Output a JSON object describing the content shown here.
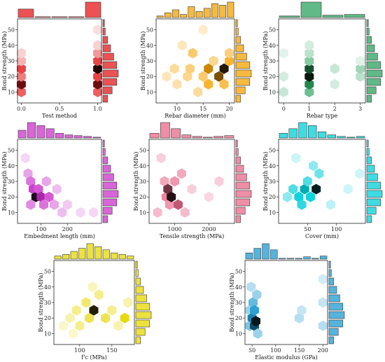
{
  "chart_data": [
    {
      "type": "hexbin",
      "color": "#e31a1c",
      "xlabel": "Test method",
      "ylabel": "Bond strength (MPa)",
      "xlim": [
        -0.05,
        1.05
      ],
      "ylim": [
        3,
        57
      ],
      "xticks": [
        0.0,
        0.5,
        1.0
      ],
      "xtick_labels": [
        "0.0",
        "0.5",
        "1.0"
      ],
      "yticks": [
        10,
        20,
        30,
        40,
        50
      ],
      "ytick_labels": [
        "10",
        "20",
        "30",
        "40",
        "50"
      ],
      "bins": [
        {
          "x": 0,
          "y": 10,
          "v": 0.5
        },
        {
          "x": 0,
          "y": 15,
          "v": 0.9
        },
        {
          "x": 0,
          "y": 20,
          "v": 0.4
        },
        {
          "x": 0,
          "y": 25,
          "v": 0.6
        },
        {
          "x": 0,
          "y": 30,
          "v": 0.2
        },
        {
          "x": 0,
          "y": 35,
          "v": 0.1
        },
        {
          "x": 1,
          "y": 10,
          "v": 0.5
        },
        {
          "x": 1,
          "y": 15,
          "v": 0.9
        },
        {
          "x": 1,
          "y": 20,
          "v": 0.6
        },
        {
          "x": 1,
          "y": 25,
          "v": 1.0
        },
        {
          "x": 1,
          "y": 30,
          "v": 0.6
        },
        {
          "x": 1,
          "y": 35,
          "v": 0.3
        },
        {
          "x": 1,
          "y": 40,
          "v": 0.1
        },
        {
          "x": 1,
          "y": 50,
          "v": 0.05
        }
      ],
      "top_hist": [
        0.55,
        0.05,
        0.05,
        0.05,
        1.0
      ],
      "right_hist": [
        0.3,
        0.6,
        0.9,
        1.0,
        0.9,
        0.7,
        0.5,
        0.3,
        0.15,
        0.1
      ]
    },
    {
      "type": "hexbin",
      "color": "#f5a300",
      "xlabel": "Rebar diameter (mm)",
      "ylabel": "Bond strength (MPa)",
      "xlim": [
        6,
        21
      ],
      "ylim": [
        3,
        57
      ],
      "xticks": [
        10,
        15,
        20
      ],
      "xtick_labels": [
        "10",
        "15",
        "20"
      ],
      "yticks": [
        10,
        20,
        30,
        40,
        50
      ],
      "ytick_labels": [
        "10",
        "20",
        "30",
        "40",
        "50"
      ],
      "bins": [
        {
          "x": 8,
          "y": 20,
          "v": 0.15
        },
        {
          "x": 9.5,
          "y": 25,
          "v": 0.25
        },
        {
          "x": 10,
          "y": 15,
          "v": 0.2
        },
        {
          "x": 12,
          "y": 20,
          "v": 0.3
        },
        {
          "x": 12.5,
          "y": 25,
          "v": 0.35
        },
        {
          "x": 13,
          "y": 35,
          "v": 0.4
        },
        {
          "x": 14,
          "y": 10,
          "v": 0.25
        },
        {
          "x": 15,
          "y": 20,
          "v": 0.4
        },
        {
          "x": 16,
          "y": 25,
          "v": 0.8
        },
        {
          "x": 16,
          "y": 15,
          "v": 0.6
        },
        {
          "x": 17,
          "y": 30,
          "v": 0.3
        },
        {
          "x": 18,
          "y": 20,
          "v": 0.9
        },
        {
          "x": 19,
          "y": 25,
          "v": 1.0
        },
        {
          "x": 20,
          "y": 30,
          "v": 0.6
        },
        {
          "x": 20,
          "y": 35,
          "v": 0.35
        },
        {
          "x": 19,
          "y": 15,
          "v": 0.5
        },
        {
          "x": 15,
          "y": 50,
          "v": 0.1
        },
        {
          "x": 11,
          "y": 40,
          "v": 0.15
        }
      ],
      "top_hist": [
        0.1,
        0.3,
        0.5,
        0.2,
        0.7,
        0.4,
        0.6,
        0.9,
        0.8,
        1.0
      ],
      "right_hist": [
        0.3,
        0.6,
        0.9,
        1.0,
        0.9,
        0.7,
        0.5,
        0.3,
        0.15,
        0.1
      ]
    },
    {
      "type": "hexbin",
      "color": "#2ca25f",
      "xlabel": "Rebar type",
      "ylabel": "Bond strength (MPa)",
      "xlim": [
        -0.2,
        3.2
      ],
      "ylim": [
        3,
        57
      ],
      "xticks": [
        0,
        1,
        2,
        3
      ],
      "xtick_labels": [
        "0",
        "1",
        "2",
        "3"
      ],
      "yticks": [
        10,
        20,
        30,
        40,
        50
      ],
      "ytick_labels": [
        "10",
        "20",
        "30",
        "40",
        "50"
      ],
      "bins": [
        {
          "x": 0,
          "y": 10,
          "v": 0.15
        },
        {
          "x": 0,
          "y": 20,
          "v": 0.1
        },
        {
          "x": 0,
          "y": 35,
          "v": 0.05
        },
        {
          "x": 1,
          "y": 10,
          "v": 0.5
        },
        {
          "x": 1,
          "y": 15,
          "v": 0.8
        },
        {
          "x": 1,
          "y": 20,
          "v": 1.0
        },
        {
          "x": 1,
          "y": 25,
          "v": 0.9
        },
        {
          "x": 1,
          "y": 30,
          "v": 0.4
        },
        {
          "x": 1,
          "y": 35,
          "v": 0.2
        },
        {
          "x": 1,
          "y": 40,
          "v": 0.1
        },
        {
          "x": 2,
          "y": 15,
          "v": 0.1
        },
        {
          "x": 2,
          "y": 25,
          "v": 0.15
        },
        {
          "x": 3,
          "y": 20,
          "v": 0.2
        },
        {
          "x": 3,
          "y": 25,
          "v": 0.3
        },
        {
          "x": 3,
          "y": 30,
          "v": 0.05
        }
      ],
      "top_hist": [
        0.1,
        1.0,
        0.15,
        0.2
      ],
      "right_hist": [
        0.3,
        0.6,
        0.9,
        1.0,
        0.9,
        0.7,
        0.5,
        0.3,
        0.15,
        0.1
      ]
    },
    {
      "type": "hexbin",
      "color": "#cc33cc",
      "xlabel": "Embedment length (mm)",
      "ylabel": "Bond strength (MPa)",
      "xlim": [
        10,
        330
      ],
      "ylim": [
        3,
        57
      ],
      "xticks": [
        100,
        200
      ],
      "xtick_labels": [
        "100",
        "200"
      ],
      "yticks": [
        10,
        20,
        30,
        40,
        50
      ],
      "ytick_labels": [
        "10",
        "20",
        "30",
        "40",
        "50"
      ],
      "bins": [
        {
          "x": 40,
          "y": 45,
          "v": 0.1
        },
        {
          "x": 50,
          "y": 35,
          "v": 0.3
        },
        {
          "x": 60,
          "y": 30,
          "v": 0.5
        },
        {
          "x": 70,
          "y": 25,
          "v": 0.7
        },
        {
          "x": 80,
          "y": 20,
          "v": 1.0
        },
        {
          "x": 90,
          "y": 25,
          "v": 0.6
        },
        {
          "x": 100,
          "y": 20,
          "v": 0.8
        },
        {
          "x": 110,
          "y": 15,
          "v": 0.5
        },
        {
          "x": 130,
          "y": 20,
          "v": 0.6
        },
        {
          "x": 150,
          "y": 15,
          "v": 0.3
        },
        {
          "x": 160,
          "y": 25,
          "v": 0.2
        },
        {
          "x": 180,
          "y": 10,
          "v": 0.2
        },
        {
          "x": 200,
          "y": 15,
          "v": 0.15
        },
        {
          "x": 250,
          "y": 10,
          "v": 0.1
        },
        {
          "x": 300,
          "y": 10,
          "v": 0.1
        },
        {
          "x": 60,
          "y": 15,
          "v": 0.4
        },
        {
          "x": 120,
          "y": 30,
          "v": 0.3
        }
      ],
      "top_hist": [
        0.5,
        1.0,
        0.8,
        0.6,
        0.3,
        0.2,
        0.15,
        0.1,
        0.05
      ],
      "right_hist": [
        0.3,
        0.6,
        0.9,
        1.0,
        0.9,
        0.7,
        0.5,
        0.3,
        0.15,
        0.1
      ]
    },
    {
      "type": "hexbin",
      "color": "#e8698a",
      "xlabel": "Tensile strength (MPa)",
      "ylabel": "Bond strength (MPa)",
      "xlim": [
        250,
        2750
      ],
      "ylim": [
        3,
        57
      ],
      "xticks": [
        1000,
        2000
      ],
      "xtick_labels": [
        "1000",
        "2000"
      ],
      "yticks": [
        10,
        20,
        30,
        40,
        50
      ],
      "ytick_labels": [
        "10",
        "20",
        "30",
        "40",
        "50"
      ],
      "bins": [
        {
          "x": 500,
          "y": 10,
          "v": 0.3
        },
        {
          "x": 600,
          "y": 45,
          "v": 0.2
        },
        {
          "x": 700,
          "y": 30,
          "v": 0.4
        },
        {
          "x": 750,
          "y": 20,
          "v": 0.6
        },
        {
          "x": 800,
          "y": 25,
          "v": 0.9
        },
        {
          "x": 850,
          "y": 15,
          "v": 0.5
        },
        {
          "x": 900,
          "y": 20,
          "v": 1.0
        },
        {
          "x": 1000,
          "y": 30,
          "v": 0.5
        },
        {
          "x": 1100,
          "y": 15,
          "v": 0.8
        },
        {
          "x": 1200,
          "y": 35,
          "v": 0.4
        },
        {
          "x": 1300,
          "y": 10,
          "v": 0.3
        },
        {
          "x": 1500,
          "y": 25,
          "v": 0.2
        },
        {
          "x": 2000,
          "y": 20,
          "v": 0.15
        },
        {
          "x": 2300,
          "y": 30,
          "v": 0.2
        }
      ],
      "top_hist": [
        0.3,
        1.0,
        0.6,
        0.2,
        0.1,
        0.05,
        0.1,
        0.15
      ],
      "right_hist": [
        0.3,
        0.6,
        0.9,
        1.0,
        0.9,
        0.7,
        0.5,
        0.3,
        0.15,
        0.1
      ]
    },
    {
      "type": "hexbin",
      "color": "#00cfd8",
      "xlabel": "Cover (mm)",
      "ylabel": "Bond strength (MPa)",
      "xlim": [
        0,
        150
      ],
      "ylim": [
        3,
        57
      ],
      "xticks": [
        50,
        100
      ],
      "xtick_labels": [
        "50",
        "100"
      ],
      "yticks": [
        10,
        20,
        30,
        40,
        50
      ],
      "ytick_labels": [
        "10",
        "20",
        "30",
        "40",
        "50"
      ],
      "bins": [
        {
          "x": 15,
          "y": 20,
          "v": 0.3
        },
        {
          "x": 25,
          "y": 25,
          "v": 0.5
        },
        {
          "x": 35,
          "y": 20,
          "v": 0.7
        },
        {
          "x": 40,
          "y": 15,
          "v": 0.6
        },
        {
          "x": 45,
          "y": 25,
          "v": 0.8
        },
        {
          "x": 50,
          "y": 30,
          "v": 0.5
        },
        {
          "x": 55,
          "y": 20,
          "v": 0.7
        },
        {
          "x": 65,
          "y": 25,
          "v": 1.0
        },
        {
          "x": 60,
          "y": 40,
          "v": 0.3
        },
        {
          "x": 70,
          "y": 35,
          "v": 0.4
        },
        {
          "x": 30,
          "y": 45,
          "v": 0.1
        },
        {
          "x": 90,
          "y": 15,
          "v": 0.15
        },
        {
          "x": 120,
          "y": 25,
          "v": 0.1
        },
        {
          "x": 140,
          "y": 35,
          "v": 0.1
        }
      ],
      "top_hist": [
        0.3,
        0.6,
        1.0,
        0.8,
        0.4,
        0.2,
        0.1,
        0.05,
        0.1
      ],
      "right_hist": [
        0.3,
        0.6,
        0.9,
        1.0,
        0.9,
        0.7,
        0.5,
        0.3,
        0.15,
        0.1
      ]
    },
    {
      "type": "hexbin",
      "color": "#e6d800",
      "xlabel": "f'c (MPa)",
      "ylabel": "Bond strength (MPa)",
      "xlim": [
        60,
        185
      ],
      "ylim": [
        3,
        57
      ],
      "xticks": [
        100,
        150
      ],
      "xtick_labels": [
        "100",
        "150"
      ],
      "yticks": [
        10,
        20,
        30,
        40,
        50
      ],
      "ytick_labels": [
        "10",
        "20",
        "30",
        "40",
        "50"
      ],
      "bins": [
        {
          "x": 75,
          "y": 15,
          "v": 0.1
        },
        {
          "x": 85,
          "y": 20,
          "v": 0.2
        },
        {
          "x": 95,
          "y": 25,
          "v": 0.3
        },
        {
          "x": 100,
          "y": 15,
          "v": 0.3
        },
        {
          "x": 110,
          "y": 30,
          "v": 0.4
        },
        {
          "x": 115,
          "y": 20,
          "v": 0.5
        },
        {
          "x": 122,
          "y": 25,
          "v": 1.0
        },
        {
          "x": 130,
          "y": 35,
          "v": 0.3
        },
        {
          "x": 140,
          "y": 20,
          "v": 0.5
        },
        {
          "x": 150,
          "y": 25,
          "v": 0.3
        },
        {
          "x": 160,
          "y": 15,
          "v": 0.2
        },
        {
          "x": 170,
          "y": 20,
          "v": 0.7
        },
        {
          "x": 175,
          "y": 30,
          "v": 0.2
        },
        {
          "x": 120,
          "y": 40,
          "v": 0.15
        },
        {
          "x": 90,
          "y": 10,
          "v": 0.1
        }
      ],
      "top_hist": [
        0.2,
        0.3,
        0.5,
        0.7,
        1.0,
        0.8,
        0.6,
        0.4,
        0.3,
        0.2
      ],
      "right_hist": [
        0.3,
        0.6,
        0.9,
        1.0,
        0.9,
        0.7,
        0.5,
        0.3,
        0.15,
        0.1
      ]
    },
    {
      "type": "hexbin",
      "color": "#1f9bd1",
      "xlabel": "Elastic modulus (GPa)",
      "ylabel": "Bond strength (MPa)",
      "xlim": [
        35,
        210
      ],
      "ylim": [
        3,
        57
      ],
      "xticks": [
        50,
        100,
        150,
        200
      ],
      "xtick_labels": [
        "50",
        "100",
        "150",
        "200"
      ],
      "bins": [
        {
          "x": 45,
          "y": 15,
          "v": 0.4
        },
        {
          "x": 45,
          "y": 25,
          "v": 0.3
        },
        {
          "x": 50,
          "y": 20,
          "v": 0.8
        },
        {
          "x": 52,
          "y": 30,
          "v": 0.5
        },
        {
          "x": 55,
          "y": 15,
          "v": 0.9
        },
        {
          "x": 55,
          "y": 25,
          "v": 0.7
        },
        {
          "x": 58,
          "y": 18,
          "v": 1.0
        },
        {
          "x": 60,
          "y": 35,
          "v": 0.3
        },
        {
          "x": 48,
          "y": 40,
          "v": 0.2
        },
        {
          "x": 62,
          "y": 10,
          "v": 0.3
        },
        {
          "x": 150,
          "y": 20,
          "v": 0.2
        },
        {
          "x": 155,
          "y": 25,
          "v": 0.15
        },
        {
          "x": 200,
          "y": 15,
          "v": 0.2
        },
        {
          "x": 200,
          "y": 30,
          "v": 0.15
        },
        {
          "x": 200,
          "y": 45,
          "v": 0.1
        }
      ],
      "yticks": [
        10,
        20,
        30,
        40,
        50
      ],
      "ytick_labels": [
        "10",
        "20",
        "30",
        "40",
        "50"
      ],
      "top_hist": [
        0.4,
        0.7,
        1.0,
        0.6,
        0.05,
        0.05,
        0.05,
        0.15,
        0.05,
        0.2
      ],
      "right_hist": [
        0.3,
        0.6,
        0.9,
        1.0,
        0.9,
        0.7,
        0.5,
        0.3,
        0.15,
        0.1
      ]
    }
  ]
}
